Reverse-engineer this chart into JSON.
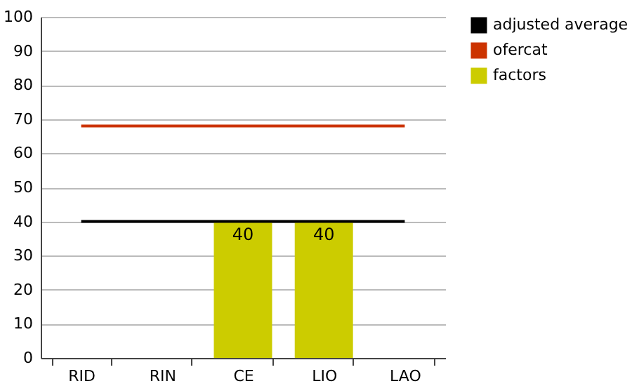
{
  "chart_data": {
    "type": "bar",
    "categories": [
      "RID",
      "RIN",
      "CE",
      "LIO",
      "LAO"
    ],
    "series": [
      {
        "name": "adjusted average",
        "type": "line",
        "color": "#000000",
        "values": [
          40,
          40,
          40,
          40,
          40
        ]
      },
      {
        "name": "ofercat",
        "type": "line",
        "color": "#cc3300",
        "values": [
          68,
          68,
          68,
          68,
          68
        ]
      },
      {
        "name": "factors",
        "color": "#cccc00",
        "values": [
          0,
          0,
          40,
          40,
          0
        ],
        "value_labels": [
          null,
          null,
          "40",
          "40",
          null
        ]
      }
    ],
    "ylim": [
      0,
      100
    ],
    "yticks": [
      0,
      10,
      20,
      30,
      40,
      50,
      60,
      70,
      80,
      90,
      100
    ],
    "grid": "y",
    "legend": "right",
    "marker": "none"
  }
}
